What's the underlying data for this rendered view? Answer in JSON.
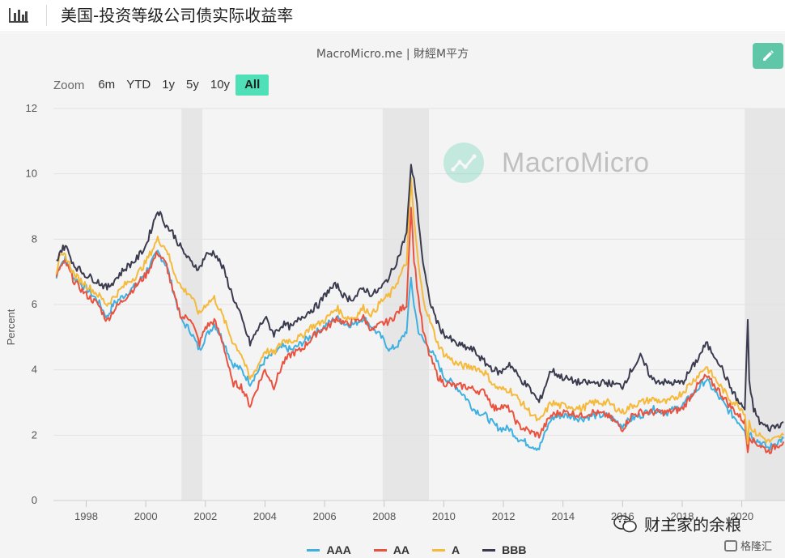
{
  "header": {
    "title": "美国-投资等级公司债实际收益率",
    "icon": "bar-chart-icon"
  },
  "credit": "MacroMicro.me | 財經M平方",
  "watermark": "MacroMicro",
  "zoom": {
    "label": "Zoom",
    "options": [
      "6m",
      "YTD",
      "1y",
      "5y",
      "10y",
      "All"
    ],
    "active": "All"
  },
  "footer": {
    "brand": "财主家的余粮",
    "site": "格隆汇"
  },
  "chart_data": {
    "type": "line",
    "title": "",
    "xlabel": "",
    "ylabel": "Percent",
    "xlim": [
      1996.9,
      2021.45
    ],
    "ylim": [
      0,
      12
    ],
    "y_ticks": [
      0,
      2,
      4,
      6,
      8,
      10,
      12
    ],
    "x_ticks": [
      1998,
      2000,
      2002,
      2004,
      2006,
      2008,
      2010,
      2012,
      2014,
      2016,
      2018,
      2020
    ],
    "x_tick_labels": [
      "1998",
      "2000",
      "2002",
      "2004",
      "2006",
      "2008",
      "2010",
      "2012",
      "2014",
      "2016",
      "2018",
      "2020"
    ],
    "grid": true,
    "legend_position": "bottom",
    "recession_bands": [
      [
        2001.2,
        2001.9
      ],
      [
        2007.95,
        2009.5
      ],
      [
        2020.1,
        2021.45
      ]
    ],
    "x": [
      1997.0,
      1997.1,
      1997.3,
      1997.6,
      1998.0,
      1998.4,
      1998.7,
      1998.9,
      1999.3,
      1999.7,
      2000.0,
      2000.4,
      2000.7,
      2000.9,
      2001.2,
      2001.5,
      2001.8,
      2002.0,
      2002.3,
      2002.6,
      2002.9,
      2003.2,
      2003.5,
      2003.8,
      2004.0,
      2004.3,
      2004.6,
      2004.9,
      2005.2,
      2005.5,
      2005.8,
      2006.1,
      2006.4,
      2006.7,
      2007.0,
      2007.3,
      2007.6,
      2007.9,
      2008.2,
      2008.5,
      2008.75,
      2008.9,
      2009.0,
      2009.15,
      2009.3,
      2009.5,
      2009.8,
      2010.0,
      2010.4,
      2010.7,
      2011.0,
      2011.4,
      2011.7,
      2011.9,
      2012.2,
      2012.5,
      2012.9,
      2013.2,
      2013.6,
      2013.9,
      2014.2,
      2014.6,
      2015.0,
      2015.5,
      2016.0,
      2016.3,
      2016.6,
      2017.0,
      2017.5,
      2018.0,
      2018.5,
      2018.8,
      2019.2,
      2019.6,
      2019.9,
      2020.1,
      2020.2,
      2020.25,
      2020.4,
      2020.6,
      2020.9,
      2021.2,
      2021.4
    ],
    "series": [
      {
        "name": "AAA",
        "color": "#3fb0e0",
        "values": [
          6.8,
          7.2,
          7.4,
          6.8,
          6.5,
          6.1,
          5.6,
          6.0,
          6.3,
          6.6,
          7.0,
          7.6,
          7.2,
          6.5,
          5.5,
          5.2,
          4.6,
          5.0,
          5.4,
          4.9,
          4.2,
          4.0,
          3.6,
          4.0,
          4.3,
          4.5,
          4.7,
          4.6,
          4.8,
          5.0,
          5.2,
          5.4,
          5.6,
          5.4,
          5.4,
          5.6,
          5.3,
          5.0,
          4.6,
          4.8,
          5.2,
          6.8,
          6.0,
          5.2,
          4.9,
          4.7,
          4.2,
          3.8,
          3.5,
          3.2,
          2.8,
          2.6,
          2.3,
          2.2,
          2.2,
          1.9,
          1.7,
          1.6,
          2.5,
          2.6,
          2.6,
          2.5,
          2.6,
          2.6,
          2.3,
          2.5,
          2.6,
          2.8,
          2.7,
          2.9,
          3.4,
          3.7,
          3.2,
          2.7,
          2.4,
          2.2,
          1.7,
          2.1,
          1.9,
          1.8,
          1.6,
          1.8,
          1.9
        ]
      },
      {
        "name": "AA",
        "color": "#e9523f",
        "values": [
          6.8,
          7.1,
          7.3,
          6.7,
          6.3,
          6.0,
          5.5,
          5.8,
          6.2,
          6.6,
          6.9,
          7.6,
          7.2,
          6.4,
          5.6,
          5.6,
          4.8,
          5.3,
          5.5,
          4.8,
          3.6,
          3.5,
          2.9,
          3.6,
          4.0,
          3.5,
          4.2,
          4.5,
          4.6,
          4.9,
          5.2,
          5.3,
          5.6,
          5.4,
          5.5,
          5.6,
          5.2,
          5.4,
          5.5,
          5.8,
          6.0,
          9.0,
          7.4,
          6.2,
          5.2,
          4.5,
          3.8,
          3.6,
          3.5,
          3.5,
          3.4,
          3.3,
          2.8,
          2.9,
          2.8,
          2.3,
          2.1,
          2.0,
          2.6,
          2.7,
          2.7,
          2.6,
          2.7,
          2.6,
          2.2,
          2.6,
          2.7,
          2.7,
          2.7,
          2.8,
          3.5,
          3.8,
          3.4,
          2.9,
          2.6,
          2.4,
          1.5,
          2.0,
          1.8,
          1.7,
          1.5,
          1.7,
          1.8
        ]
      },
      {
        "name": "A",
        "color": "#f5b93b",
        "values": [
          7.0,
          7.4,
          7.5,
          6.9,
          6.6,
          6.3,
          6.0,
          6.2,
          6.6,
          6.9,
          7.3,
          8.0,
          7.7,
          7.1,
          6.5,
          6.3,
          5.7,
          6.0,
          6.2,
          5.6,
          4.9,
          4.5,
          3.7,
          4.2,
          4.6,
          4.5,
          4.9,
          4.9,
          5.0,
          5.3,
          5.4,
          5.6,
          5.9,
          5.6,
          5.6,
          5.9,
          5.7,
          6.1,
          6.3,
          6.8,
          7.3,
          9.8,
          8.6,
          7.2,
          6.2,
          5.6,
          4.8,
          4.5,
          4.2,
          4.1,
          4.1,
          3.9,
          3.5,
          3.4,
          3.4,
          3.1,
          2.7,
          2.4,
          3.0,
          2.9,
          2.9,
          2.8,
          3.0,
          3.0,
          2.7,
          2.9,
          3.0,
          3.1,
          3.0,
          3.3,
          3.8,
          4.1,
          3.6,
          3.1,
          2.9,
          2.7,
          1.8,
          2.4,
          2.1,
          2.0,
          1.8,
          1.9,
          2.0
        ]
      },
      {
        "name": "BBB",
        "color": "#3b3b4f",
        "values": [
          7.3,
          7.6,
          7.8,
          7.2,
          6.9,
          6.7,
          6.5,
          6.7,
          7.1,
          7.4,
          7.8,
          8.9,
          8.4,
          8.2,
          7.7,
          7.3,
          7.1,
          7.5,
          7.6,
          7.1,
          6.3,
          5.6,
          4.8,
          5.3,
          5.6,
          5.1,
          5.4,
          5.3,
          5.6,
          5.8,
          6.0,
          6.4,
          6.6,
          6.2,
          6.2,
          6.5,
          6.3,
          6.5,
          6.9,
          7.5,
          8.2,
          10.2,
          9.9,
          8.6,
          7.3,
          6.2,
          5.4,
          5.1,
          4.8,
          4.7,
          4.6,
          4.2,
          4.0,
          3.9,
          4.2,
          3.8,
          3.4,
          3.0,
          4.0,
          3.8,
          3.7,
          3.6,
          3.6,
          3.6,
          3.5,
          4.0,
          4.4,
          3.7,
          3.6,
          3.6,
          4.3,
          4.8,
          4.3,
          3.5,
          3.0,
          2.8,
          5.5,
          3.6,
          2.8,
          2.4,
          2.2,
          2.3,
          2.4
        ]
      }
    ]
  }
}
